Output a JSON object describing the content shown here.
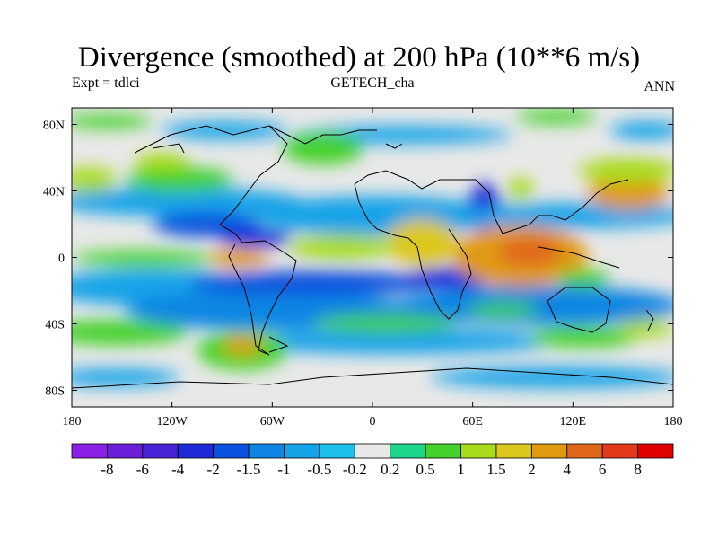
{
  "figure": {
    "title": "Divergence (smoothed) at 200 hPa (10**6 m/s)",
    "left_label": "Expt = tdlci",
    "center_label": "GETECH_cha",
    "right_label": "ANN"
  },
  "axes": {
    "x_ticks": [
      "180",
      "120W",
      "60W",
      "0",
      "60E",
      "120E",
      "180"
    ],
    "y_ticks": [
      "80N",
      "40N",
      "0",
      "40S",
      "80S"
    ]
  },
  "colorbar": {
    "labels": [
      "-8",
      "-6",
      "-4",
      "-2",
      "-1.5",
      "-1",
      "-0.5",
      "-0.2",
      "0.2",
      "0.5",
      "1",
      "1.5",
      "2",
      "4",
      "6",
      "8"
    ],
    "colors": [
      "#8a1fe6",
      "#6a1ed8",
      "#4a22d6",
      "#1e2ad8",
      "#0b52df",
      "#0f86e3",
      "#15a3e8",
      "#1cc0ea",
      "#e8e8e8",
      "#1dd68c",
      "#45d12c",
      "#a8dc1a",
      "#dcc81c",
      "#e09a12",
      "#e0661a",
      "#e4381a",
      "#e00000"
    ]
  },
  "chart_data": {
    "type": "heatmap",
    "title": "Divergence (smoothed) at 200 hPa (10**6 m/s)",
    "x_range": [
      -180,
      180
    ],
    "y_range": [
      -90,
      90
    ],
    "levels": [
      -8,
      -6,
      -4,
      -2,
      -1.5,
      -1,
      -0.5,
      -0.2,
      0.2,
      0.5,
      1,
      1.5,
      2,
      4,
      6,
      8
    ]
  }
}
